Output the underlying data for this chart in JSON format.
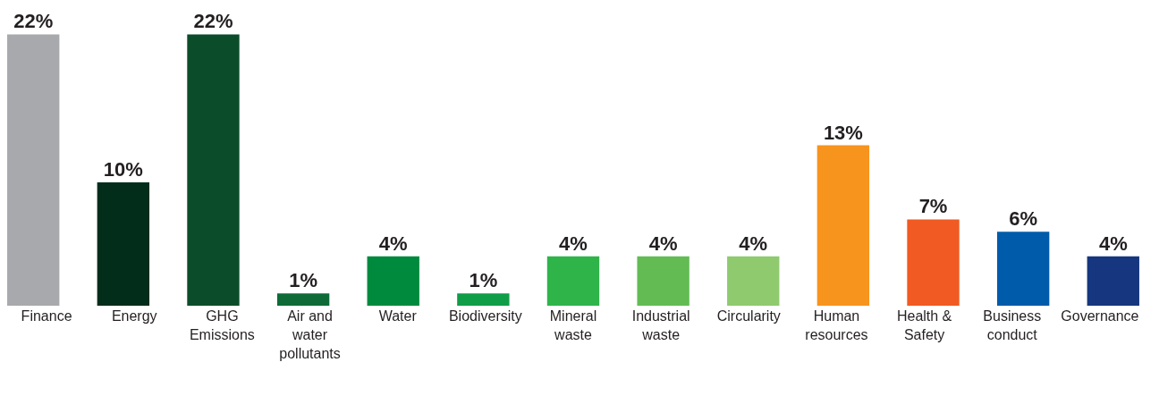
{
  "chart_data": {
    "type": "bar",
    "categories": [
      "Finance",
      "Energy",
      "GHG Emissions",
      "Air and water pollutants",
      "Water",
      "Biodiversity",
      "Mineral waste",
      "Industrial waste",
      "Circularity",
      "Human resources",
      "Health & Safety",
      "Business conduct",
      "Governance"
    ],
    "values": [
      22,
      10,
      22,
      1,
      4,
      1,
      4,
      4,
      4,
      13,
      7,
      6,
      4
    ],
    "value_labels": [
      "22%",
      "10%",
      "22%",
      "1%",
      "4%",
      "1%",
      "4%",
      "4%",
      "4%",
      "13%",
      "7%",
      "6%",
      "4%"
    ],
    "colors": [
      "#a7a9ac",
      "#022d1b",
      "#0b4d2a",
      "#0e6b37",
      "#008a3e",
      "#0f9d48",
      "#2fb44a",
      "#62bc53",
      "#8fca6f",
      "#f7941d",
      "#f15a22",
      "#005baa",
      "#16377f"
    ]
  }
}
